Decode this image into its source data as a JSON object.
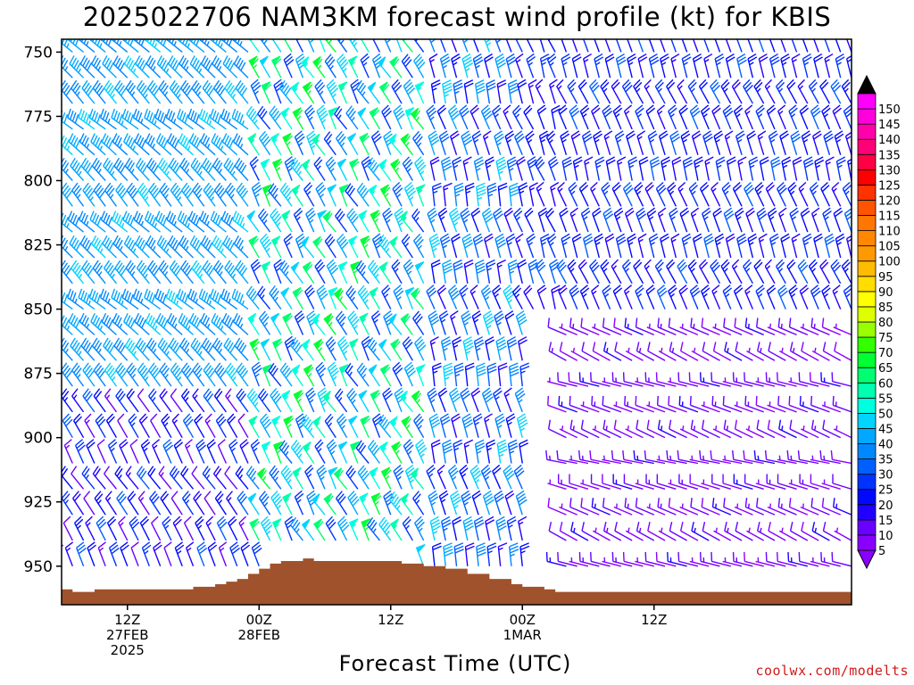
{
  "chart_data": {
    "type": "wind_barb_time_height",
    "title": "2025022706 NAM3KM forecast wind profile (kt) for KBIS",
    "xlabel": "Forecast Time (UTC)",
    "ylabel": "",
    "units": "kt",
    "y_axis": {
      "ticks": [
        750,
        775,
        800,
        825,
        850,
        875,
        900,
        925,
        950
      ],
      "range": [
        745,
        965
      ],
      "inverted": true
    },
    "x_axis": {
      "range": [
        "2025-02-27T06",
        "2025-03-02T06"
      ],
      "ticks": [
        {
          "time": "2025-02-27T12",
          "label": [
            "12Z",
            "27FEB",
            "2025"
          ]
        },
        {
          "time": "2025-02-28T00",
          "label": [
            "00Z",
            "28FEB"
          ]
        },
        {
          "time": "2025-02-28T12",
          "label": [
            "12Z"
          ]
        },
        {
          "time": "2025-03-01T00",
          "label": [
            "00Z",
            "1MAR"
          ]
        },
        {
          "time": "2025-03-01T12",
          "label": [
            "12Z"
          ]
        }
      ]
    },
    "colorbar": {
      "labels": [
        5,
        10,
        15,
        20,
        25,
        30,
        35,
        40,
        45,
        50,
        55,
        60,
        65,
        70,
        75,
        80,
        85,
        90,
        95,
        100,
        105,
        110,
        115,
        120,
        125,
        130,
        135,
        140,
        145,
        150
      ],
      "colors": [
        "#8a00ff",
        "#6a00ff",
        "#2200ff",
        "#0008ff",
        "#0033ff",
        "#0060ff",
        "#0088ff",
        "#00a8ff",
        "#00d4ff",
        "#00ffe0",
        "#00ffb0",
        "#00ff70",
        "#00ff33",
        "#33ff00",
        "#99ff00",
        "#ddff00",
        "#ffff00",
        "#ffdd00",
        "#ffbb00",
        "#ff9900",
        "#ff8800",
        "#ff7700",
        "#ff5500",
        "#ff3300",
        "#ff0000",
        "#ff0044",
        "#ff0077",
        "#ff00aa",
        "#ff00dd",
        "#ff00ff"
      ],
      "extend": "both"
    },
    "surface_pressure": [
      {
        "t": "2025-02-27T06",
        "p": 959
      },
      {
        "t": "2025-02-27T07",
        "p": 960
      },
      {
        "t": "2025-02-27T09",
        "p": 959
      },
      {
        "t": "2025-02-27T15",
        "p": 959
      },
      {
        "t": "2025-02-27T18",
        "p": 958
      },
      {
        "t": "2025-02-27T20",
        "p": 957
      },
      {
        "t": "2025-02-27T21",
        "p": 956
      },
      {
        "t": "2025-02-27T22",
        "p": 955
      },
      {
        "t": "2025-02-27T23",
        "p": 953
      },
      {
        "t": "2025-02-28T00",
        "p": 951
      },
      {
        "t": "2025-02-28T01",
        "p": 949
      },
      {
        "t": "2025-02-28T02",
        "p": 948
      },
      {
        "t": "2025-02-28T04",
        "p": 947
      },
      {
        "t": "2025-02-28T05",
        "p": 948
      },
      {
        "t": "2025-02-28T12",
        "p": 948
      },
      {
        "t": "2025-02-28T13",
        "p": 949
      },
      {
        "t": "2025-02-28T15",
        "p": 950
      },
      {
        "t": "2025-02-28T17",
        "p": 951
      },
      {
        "t": "2025-02-28T19",
        "p": 953
      },
      {
        "t": "2025-02-28T21",
        "p": 955
      },
      {
        "t": "2025-02-28T23",
        "p": 957
      },
      {
        "t": "2025-03-01T00",
        "p": 958
      },
      {
        "t": "2025-03-01T02",
        "p": 959
      },
      {
        "t": "2025-03-01T03",
        "p": 960
      },
      {
        "t": "2025-03-01T12",
        "p": 960
      },
      {
        "t": "2025-03-02T06",
        "p": 959
      }
    ],
    "wind_barbs": {
      "levels": [
        750,
        760,
        770,
        780,
        790,
        800,
        810,
        820,
        830,
        840,
        850,
        860,
        870,
        880,
        890,
        900,
        910,
        920,
        930,
        940,
        950
      ],
      "time_step_hours": 1,
      "regimes": [
        {
          "from": "2025-02-27T06",
          "to": "2025-02-28T05",
          "levels": "750-880",
          "direction_deg": 315,
          "speed_kt": [
            35,
            45
          ]
        },
        {
          "from": "2025-02-27T06",
          "to": "2025-02-28T05",
          "levels": "890-950",
          "direction_deg": 330,
          "speed_kt": [
            10,
            30
          ]
        },
        {
          "from": "2025-02-28T00",
          "to": "2025-02-28T15",
          "levels": "750-950",
          "direction_deg": 330,
          "speed_kt": [
            25,
            65
          ]
        },
        {
          "from": "2025-02-28T16",
          "to": "2025-03-01T00",
          "levels": "750-950",
          "direction_deg": 345,
          "speed_kt": [
            15,
            45
          ]
        },
        {
          "from": "2025-03-01T00",
          "to": "2025-03-02T06",
          "levels": "750-850",
          "direction_deg": 340,
          "speed_kt": [
            15,
            30
          ]
        },
        {
          "from": "2025-03-01T04",
          "to": "2025-03-02T06",
          "levels": "860-950",
          "direction_deg": 290,
          "speed_kt": [
            5,
            15
          ]
        }
      ]
    }
  },
  "credit": "coolwx.com/modelts"
}
